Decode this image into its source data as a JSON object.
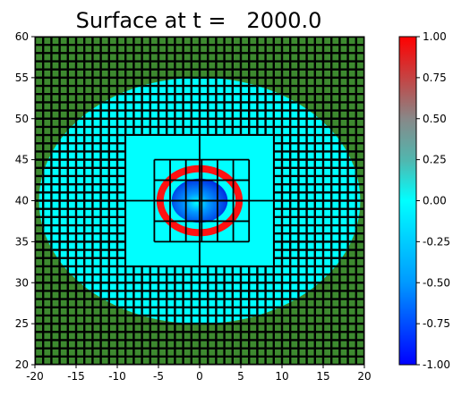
{
  "chart_data": {
    "type": "heatmap",
    "title": "Surface at t =   2000.0",
    "xlabel": "",
    "ylabel": "",
    "xlim": [
      -20,
      20
    ],
    "ylim": [
      20,
      60
    ],
    "x_ticks": [
      -20,
      -15,
      -10,
      -5,
      0,
      5,
      10,
      15,
      20
    ],
    "y_ticks": [
      20,
      25,
      30,
      35,
      40,
      45,
      50,
      55,
      60
    ],
    "colorbar": {
      "range": [
        -1.0,
        1.0
      ],
      "ticks": [
        "1.00",
        "0.75",
        "0.50",
        "0.25",
        "0.00",
        "-0.25",
        "-0.50",
        "-0.75",
        "-1.00"
      ],
      "colors": [
        "#0000ff",
        "#0099ff",
        "#00ffff",
        "#ff0000"
      ]
    },
    "fields": {
      "land_color": "#3d8a2f",
      "grid_color": "#000000",
      "water_color": "#00ffff",
      "trough_color": "#0044ee",
      "crest_color": "#ff1010",
      "water_extent": {
        "center": [
          0,
          40
        ],
        "radius_x": 19.5,
        "radius_y": 15
      }
    },
    "patches": [
      {
        "level": 1,
        "x": [
          -9,
          9
        ],
        "y": [
          32,
          48
        ],
        "cells": [
          2,
          2
        ]
      },
      {
        "level": 2,
        "x": [
          -5.5,
          6
        ],
        "y": [
          35,
          45
        ],
        "cells": [
          6,
          4
        ]
      }
    ],
    "wave": {
      "center": [
        0,
        40
      ],
      "crest_radius_x": 4.8,
      "crest_radius_y": 3.9,
      "trough_radius_x": 3.4,
      "trough_radius_y": 2.7
    }
  }
}
